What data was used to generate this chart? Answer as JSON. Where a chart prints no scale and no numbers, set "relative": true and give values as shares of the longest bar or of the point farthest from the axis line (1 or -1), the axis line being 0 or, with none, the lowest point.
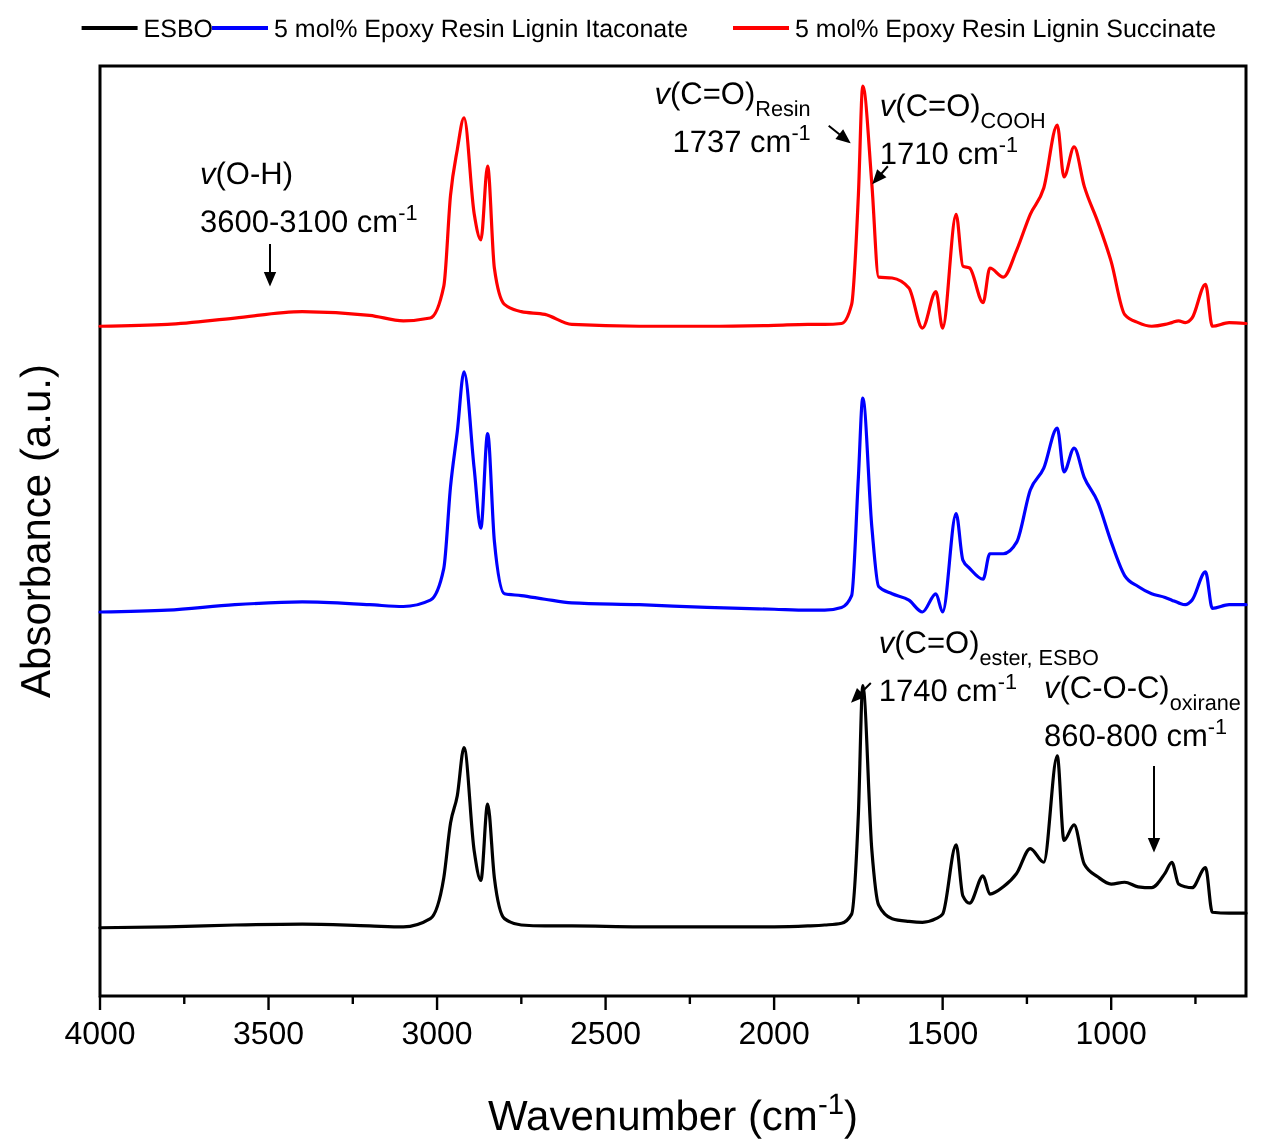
{
  "chart_data": {
    "type": "line",
    "relative": true,
    "xlabel": "Wavenumber (cm$^{-1}$)",
    "ylabel": "Absorbance (a.u.)",
    "legend": "top",
    "grid": false,
    "marker": "none",
    "line_style": "solid",
    "xlim": [
      4000,
      600
    ],
    "xticks": [
      4000,
      {
        "value": 3750,
        "label": null
      },
      3500,
      {
        "value": 3250,
        "label": null
      },
      3000,
      {
        "value": 2750,
        "label": null
      },
      2500,
      {
        "value": 2250,
        "label": null
      },
      2000,
      {
        "value": 1750,
        "label": null
      },
      1500,
      {
        "value": 1250,
        "label": null
      },
      1000,
      {
        "value": 750,
        "label": null
      }
    ],
    "x": [
      4000,
      3800,
      3600,
      3400,
      3200,
      3100,
      3020,
      2980,
      2960,
      2940,
      2920,
      2890,
      2870,
      2850,
      2830,
      2800,
      2750,
      2680,
      2600,
      2400,
      2200,
      2000,
      1900,
      1850,
      1800,
      1770,
      1750,
      1737,
      1710,
      1690,
      1650,
      1600,
      1560,
      1520,
      1500,
      1460,
      1440,
      1420,
      1380,
      1360,
      1320,
      1280,
      1240,
      1200,
      1160,
      1140,
      1110,
      1080,
      1040,
      1000,
      960,
      920,
      880,
      840,
      820,
      800,
      780,
      760,
      720,
      700,
      650,
      600
    ],
    "series": [
      {
        "name": "ESBO",
        "color": "#000000",
        "values": [
          0.075,
          0.076,
          0.078,
          0.079,
          0.077,
          0.076,
          0.085,
          0.13,
          0.19,
          0.22,
          0.273,
          0.16,
          0.127,
          0.211,
          0.13,
          0.085,
          0.078,
          0.077,
          0.077,
          0.076,
          0.076,
          0.076,
          0.077,
          0.078,
          0.08,
          0.09,
          0.2,
          0.341,
          0.16,
          0.1,
          0.085,
          0.082,
          0.081,
          0.085,
          0.09,
          0.166,
          0.11,
          0.102,
          0.132,
          0.112,
          0.12,
          0.135,
          0.162,
          0.147,
          0.264,
          0.171,
          0.188,
          0.145,
          0.131,
          0.123,
          0.125,
          0.12,
          0.119,
          0.135,
          0.147,
          0.123,
          0.12,
          0.119,
          0.141,
          0.092,
          0.091,
          0.091
        ]
      },
      {
        "name": "5 mol% Epoxy Resin Lignin Itaconate",
        "color": "#0000ff",
        "values": [
          0.422,
          0.424,
          0.43,
          0.433,
          0.43,
          0.428,
          0.435,
          0.47,
          0.56,
          0.62,
          0.686,
          0.58,
          0.514,
          0.618,
          0.5,
          0.442,
          0.44,
          0.436,
          0.432,
          0.43,
          0.427,
          0.425,
          0.424,
          0.424,
          0.427,
          0.44,
          0.57,
          0.657,
          0.515,
          0.45,
          0.442,
          0.435,
          0.422,
          0.442,
          0.422,
          0.53,
          0.479,
          0.47,
          0.458,
          0.486,
          0.486,
          0.499,
          0.556,
          0.58,
          0.624,
          0.576,
          0.602,
          0.57,
          0.543,
          0.499,
          0.462,
          0.45,
          0.442,
          0.438,
          0.435,
          0.432,
          0.43,
          0.435,
          0.466,
          0.426,
          0.43,
          0.43
        ]
      },
      {
        "name": "5 mol% Epoxy Resin Lignin Succinate",
        "color": "#ff0000",
        "values": [
          0.736,
          0.738,
          0.745,
          0.752,
          0.748,
          0.742,
          0.745,
          0.78,
          0.88,
          0.93,
          0.965,
          0.86,
          0.831,
          0.912,
          0.8,
          0.76,
          0.752,
          0.749,
          0.738,
          0.736,
          0.736,
          0.737,
          0.738,
          0.738,
          0.739,
          0.76,
          0.88,
          1.0,
          0.892,
          0.79,
          0.789,
          0.778,
          0.734,
          0.774,
          0.734,
          0.859,
          0.802,
          0.8,
          0.762,
          0.8,
          0.79,
          0.82,
          0.859,
          0.888,
          0.957,
          0.9,
          0.933,
          0.89,
          0.851,
          0.807,
          0.749,
          0.74,
          0.736,
          0.738,
          0.74,
          0.742,
          0.74,
          0.745,
          0.782,
          0.736,
          0.74,
          0.739
        ]
      }
    ],
    "annotations": [
      "v(O-H)\n3600-3100 cm$^{-1}$",
      {
        "text": "v(C=O)$_{Resin}$\n1737 cm$^{-1}$",
        "x": 1755,
        "y": 0.93
      },
      {
        "text": "v(C=O)$_{COOH}$\n1710 cm$^{-1}$",
        "x": 1710,
        "y": 0.892
      },
      {
        "text": "v(C=O)$_{ester, ESBO}$\n1740 cm$^{-1}$",
        "x": 1725,
        "y": 0.322
      },
      "v(C-O-C)$_{oxirane}$\n860-800 cm$^{-1}$"
    ]
  }
}
